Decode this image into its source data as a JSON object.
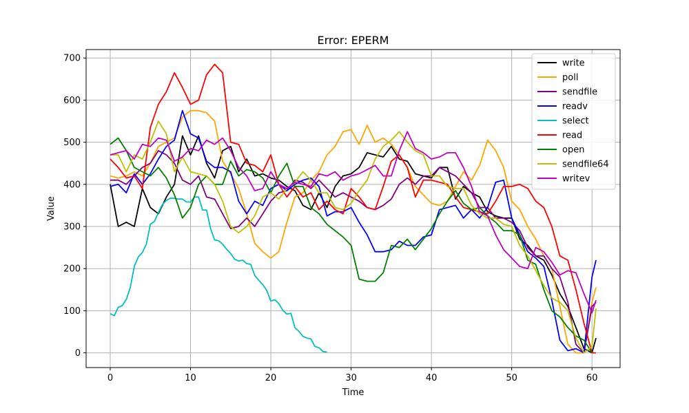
{
  "chart_data": {
    "type": "line",
    "title": "Error: EPERM",
    "xlabel": "Time",
    "ylabel": "Value",
    "xlim": [
      -3,
      63.5
    ],
    "ylim": [
      -35,
      720
    ],
    "xticks": [
      0,
      10,
      20,
      30,
      40,
      50,
      60
    ],
    "yticks": [
      0,
      100,
      200,
      300,
      400,
      500,
      600,
      700
    ],
    "grid": true,
    "legend_position": "top-right",
    "series": [
      {
        "name": "write",
        "color": "#000000",
        "x": [
          0,
          1,
          2,
          3,
          4,
          5,
          6,
          7,
          8,
          9,
          10,
          11,
          12,
          13,
          14,
          15,
          16,
          17,
          18,
          19,
          20,
          21,
          22,
          23,
          24,
          25,
          26,
          27,
          28,
          29,
          30,
          31,
          32,
          33,
          34,
          35,
          36,
          37,
          38,
          39,
          40,
          41,
          42,
          43,
          44,
          45,
          46,
          47,
          48,
          49,
          50,
          51,
          52,
          53,
          54,
          55,
          56,
          57,
          58,
          59,
          60,
          60.5
        ],
        "y": [
          400,
          300,
          310,
          300,
          390,
          345,
          330,
          370,
          400,
          515,
          470,
          515,
          450,
          415,
          480,
          490,
          430,
          460,
          420,
          425,
          415,
          410,
          395,
          385,
          350,
          340,
          380,
          345,
          395,
          420,
          425,
          440,
          475,
          470,
          465,
          490,
          460,
          455,
          425,
          420,
          415,
          440,
          440,
          365,
          395,
          380,
          370,
          335,
          325,
          320,
          320,
          270,
          255,
          230,
          220,
          185,
          140,
          110,
          60,
          10,
          0,
          35
        ]
      },
      {
        "name": "poll",
        "color": "#ffa500",
        "x": [
          0,
          1,
          2,
          3,
          4,
          5,
          6,
          7,
          8,
          9,
          10,
          11,
          12,
          13,
          14,
          15,
          16,
          17,
          18,
          19,
          20,
          21,
          22,
          23,
          24,
          25,
          26,
          27,
          28,
          29,
          30,
          31,
          32,
          33,
          34,
          35,
          36,
          37,
          38,
          39,
          40,
          41,
          42,
          43,
          44,
          45,
          46,
          47,
          48,
          49,
          50,
          51,
          52,
          53,
          54,
          55,
          56,
          57,
          58,
          59,
          60,
          60.5
        ],
        "y": [
          420,
          415,
          420,
          430,
          420,
          450,
          490,
          500,
          510,
          560,
          575,
          575,
          570,
          550,
          455,
          425,
          390,
          330,
          260,
          240,
          225,
          240,
          310,
          370,
          380,
          410,
          430,
          470,
          490,
          525,
          530,
          495,
          540,
          500,
          510,
          495,
          470,
          440,
          395,
          375,
          355,
          350,
          360,
          395,
          430,
          410,
          445,
          505,
          480,
          440,
          360,
          340,
          300,
          270,
          230,
          200,
          110,
          20,
          0,
          0,
          120,
          155
        ]
      },
      {
        "name": "sendfile",
        "color": "#800080",
        "x": [
          0,
          1,
          2,
          3,
          4,
          5,
          6,
          7,
          8,
          9,
          10,
          11,
          12,
          13,
          14,
          15,
          16,
          17,
          18,
          19,
          20,
          21,
          22,
          23,
          24,
          25,
          26,
          27,
          28,
          29,
          30,
          31,
          32,
          33,
          34,
          35,
          36,
          37,
          38,
          39,
          40,
          41,
          42,
          43,
          44,
          45,
          46,
          47,
          48,
          49,
          50,
          51,
          52,
          53,
          54,
          55,
          56,
          57,
          58,
          59,
          60,
          60.5
        ],
        "y": [
          410,
          410,
          400,
          420,
          440,
          450,
          480,
          470,
          450,
          410,
          400,
          420,
          370,
          365,
          330,
          295,
          300,
          320,
          300,
          330,
          360,
          380,
          385,
          410,
          405,
          390,
          410,
          390,
          370,
          380,
          370,
          360,
          345,
          340,
          350,
          365,
          400,
          415,
          400,
          420,
          420,
          440,
          430,
          420,
          400,
          380,
          345,
          345,
          320,
          320,
          310,
          290,
          250,
          230,
          230,
          200,
          180,
          120,
          20,
          0,
          110,
          120
        ]
      },
      {
        "name": "readv",
        "color": "#0000ff",
        "x": [
          0,
          1,
          2,
          3,
          4,
          5,
          6,
          7,
          8,
          9,
          10,
          11,
          12,
          13,
          14,
          15,
          16,
          17,
          18,
          19,
          20,
          21,
          22,
          23,
          24,
          25,
          26,
          27,
          28,
          29,
          30,
          31,
          32,
          33,
          34,
          35,
          36,
          37,
          38,
          39,
          40,
          41,
          42,
          43,
          44,
          45,
          46,
          47,
          48,
          49,
          50,
          51,
          52,
          53,
          54,
          55,
          56,
          57,
          58,
          59,
          60,
          60.5
        ],
        "y": [
          395,
          400,
          380,
          425,
          400,
          425,
          460,
          490,
          505,
          575,
          520,
          510,
          455,
          440,
          440,
          430,
          360,
          330,
          360,
          350,
          390,
          400,
          385,
          400,
          410,
          415,
          395,
          325,
          335,
          335,
          345,
          310,
          280,
          240,
          240,
          245,
          265,
          255,
          255,
          275,
          280,
          340,
          345,
          350,
          320,
          340,
          320,
          345,
          405,
          410,
          320,
          280,
          240,
          225,
          205,
          125,
          30,
          5,
          10,
          0,
          180,
          220
        ]
      },
      {
        "name": "select",
        "color": "#00bfbf",
        "x": [
          0,
          0.5,
          1,
          1.5,
          2,
          2.5,
          3,
          3.5,
          4,
          4.5,
          5,
          5.5,
          6,
          6.5,
          7,
          7.5,
          8,
          8.5,
          9,
          9.5,
          10,
          10.5,
          11,
          11.5,
          12,
          12.5,
          13,
          13.5,
          14,
          14.5,
          15,
          15.5,
          16,
          16.5,
          17,
          17.5,
          18,
          18.5,
          19,
          19.5,
          20,
          20.5,
          21,
          21.5,
          22,
          22.5,
          23,
          23.5,
          24,
          24.5,
          25,
          25.5,
          26,
          26.5,
          27
        ],
        "y": [
          93,
          88,
          108,
          112,
          127,
          155,
          205,
          228,
          238,
          258,
          305,
          312,
          333,
          352,
          362,
          367,
          367,
          365,
          365,
          358,
          358,
          370,
          370,
          339,
          339,
          295,
          268,
          266,
          258,
          246,
          236,
          222,
          218,
          220,
          212,
          210,
          184,
          172,
          162,
          148,
          123,
          126,
          117,
          101,
          92,
          94,
          60,
          51,
          39,
          35,
          33,
          15,
          12,
          3,
          2
        ]
      },
      {
        "name": "read",
        "color": "#ff0000",
        "x": [
          0,
          1,
          2,
          3,
          4,
          5,
          6,
          7,
          8,
          9,
          10,
          11,
          12,
          13,
          14,
          15,
          16,
          17,
          18,
          19,
          20,
          21,
          22,
          23,
          24,
          25,
          26,
          27,
          28,
          29,
          30,
          31,
          32,
          33,
          34,
          35,
          36,
          37,
          38,
          39,
          40,
          41,
          42,
          43,
          44,
          45,
          46,
          47,
          48,
          49,
          50,
          51,
          52,
          53,
          54,
          55,
          56,
          57,
          58,
          59,
          60,
          60.5
        ],
        "y": [
          460,
          440,
          415,
          420,
          390,
          535,
          590,
          620,
          665,
          630,
          590,
          600,
          660,
          685,
          665,
          500,
          495,
          450,
          445,
          430,
          470,
          400,
          370,
          395,
          370,
          380,
          340,
          360,
          340,
          330,
          390,
          370,
          345,
          340,
          395,
          455,
          470,
          440,
          370,
          410,
          410,
          405,
          400,
          370,
          345,
          340,
          335,
          330,
          360,
          395,
          395,
          400,
          390,
          360,
          345,
          300,
          230,
          220,
          150,
          70,
          0,
          0
        ]
      },
      {
        "name": "open",
        "color": "#008000",
        "x": [
          0,
          1,
          2,
          3,
          4,
          5,
          6,
          7,
          8,
          9,
          10,
          11,
          12,
          13,
          14,
          15,
          16,
          17,
          18,
          19,
          20,
          21,
          22,
          23,
          24,
          25,
          26,
          27,
          28,
          29,
          30,
          31,
          32,
          33,
          34,
          35,
          36,
          37,
          38,
          39,
          40,
          41,
          42,
          43,
          44,
          45,
          46,
          47,
          48,
          49,
          50,
          51,
          52,
          53,
          54,
          55,
          56,
          57,
          58,
          59,
          60
        ],
        "y": [
          495,
          510,
          480,
          440,
          430,
          420,
          440,
          415,
          375,
          320,
          345,
          400,
          420,
          400,
          400,
          455,
          420,
          435,
          430,
          415,
          380,
          420,
          450,
          395,
          395,
          345,
          330,
          305,
          290,
          275,
          255,
          175,
          170,
          170,
          190,
          255,
          250,
          270,
          245,
          270,
          295,
          330,
          360,
          385,
          355,
          340,
          345,
          325,
          310,
          290,
          290,
          280,
          220,
          210,
          150,
          100,
          85,
          60,
          40,
          30,
          0
        ]
      },
      {
        "name": "sendfile64",
        "color": "#bfbf00",
        "x": [
          0,
          1,
          2,
          3,
          4,
          5,
          6,
          7,
          8,
          9,
          10,
          11,
          12,
          13,
          14,
          15,
          16,
          17,
          18,
          19,
          20,
          21,
          22,
          23,
          24,
          25,
          26,
          27,
          28,
          29,
          30,
          31,
          32,
          33,
          34,
          35,
          36,
          37,
          38,
          39,
          40,
          41,
          42,
          43,
          44,
          45,
          46,
          47,
          48,
          49,
          50,
          51,
          52,
          53,
          54,
          55,
          56,
          57,
          58,
          59,
          60,
          60.5
        ],
        "y": [
          470,
          470,
          430,
          470,
          460,
          500,
          550,
          520,
          430,
          465,
          430,
          425,
          420,
          400,
          360,
          300,
          285,
          300,
          325,
          370,
          380,
          365,
          390,
          405,
          430,
          410,
          380,
          380,
          345,
          340,
          355,
          385,
          410,
          460,
          490,
          505,
          525,
          500,
          480,
          470,
          420,
          420,
          395,
          390,
          390,
          350,
          330,
          320,
          320,
          305,
          300,
          255,
          230,
          195,
          160,
          130,
          120,
          100,
          35,
          0,
          15,
          105
        ]
      },
      {
        "name": "writev",
        "color": "#bf00bf",
        "x": [
          0,
          1,
          2,
          3,
          4,
          5,
          6,
          7,
          8,
          9,
          10,
          11,
          12,
          13,
          14,
          15,
          16,
          17,
          18,
          19,
          20,
          21,
          22,
          23,
          24,
          25,
          26,
          27,
          28,
          29,
          30,
          31,
          32,
          33,
          34,
          35,
          36,
          37,
          38,
          39,
          40,
          41,
          42,
          43,
          44,
          45,
          46,
          47,
          48,
          49,
          50,
          51,
          52,
          53,
          54,
          55,
          56,
          57,
          58,
          59,
          60,
          60.5
        ],
        "y": [
          470,
          475,
          480,
          460,
          495,
          490,
          510,
          505,
          455,
          465,
          485,
          480,
          505,
          495,
          510,
          480,
          440,
          420,
          385,
          390,
          430,
          400,
          390,
          405,
          400,
          395,
          425,
          420,
          430,
          410,
          420,
          425,
          435,
          445,
          420,
          420,
          480,
          525,
          485,
          475,
          460,
          465,
          475,
          475,
          440,
          395,
          335,
          325,
          280,
          245,
          225,
          205,
          200,
          250,
          240,
          215,
          185,
          195,
          190,
          140,
          95,
          125
        ]
      }
    ]
  }
}
